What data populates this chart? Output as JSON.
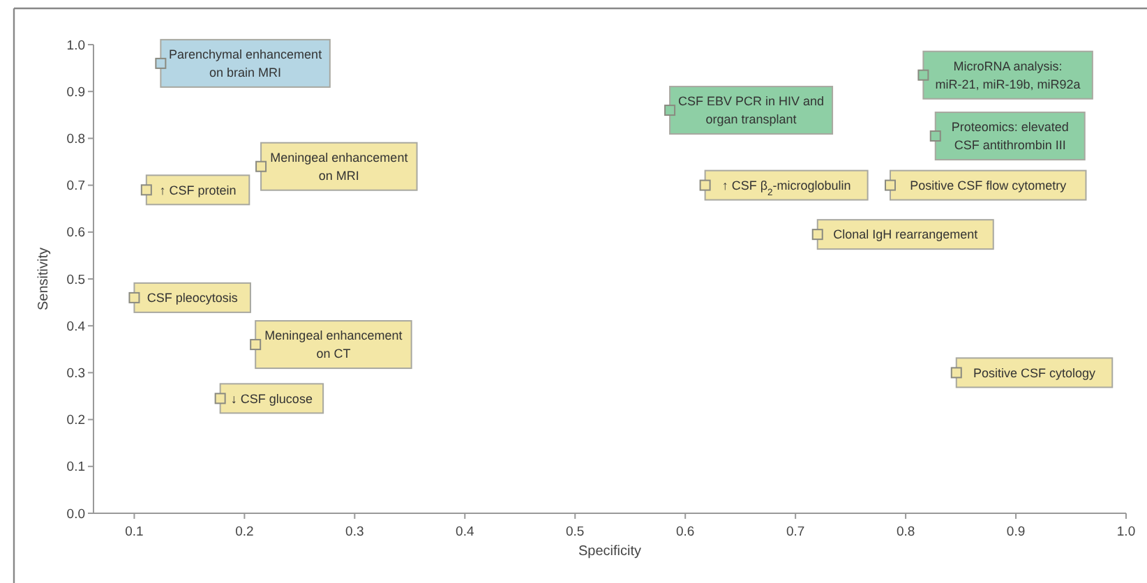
{
  "chart_data": {
    "type": "scatter",
    "xlabel": "Specificity",
    "ylabel": "Sensitivity",
    "xlim": [
      0.063,
      1.0
    ],
    "xticks": [
      {
        "value": 0.1,
        "label": "0.1"
      },
      {
        "value": 0.2,
        "label": "0.2"
      },
      {
        "value": 0.3,
        "label": "0.3"
      },
      {
        "value": 0.4,
        "label": "0.4"
      },
      {
        "value": 0.5,
        "label": "0.5"
      },
      {
        "value": 0.6,
        "label": "0.6"
      },
      {
        "value": 0.7,
        "label": "0.7"
      },
      {
        "value": 0.8,
        "label": "0.8"
      },
      {
        "value": 0.9,
        "label": "0.9"
      },
      {
        "value": 1.0,
        "label": "1.0"
      }
    ],
    "ylim": [
      0,
      1.0
    ],
    "yticks": [
      {
        "value": 0,
        "label": "0.0"
      },
      {
        "value": 0.1,
        "label": "0.1"
      },
      {
        "value": 0.2,
        "label": "0.2"
      },
      {
        "value": 0.3,
        "label": "0.3"
      },
      {
        "value": 0.4,
        "label": "0.4"
      },
      {
        "value": 0.5,
        "label": "0.5"
      },
      {
        "value": 0.6,
        "label": "0.6"
      },
      {
        "value": 0.7,
        "label": "0.7"
      },
      {
        "value": 0.8,
        "label": "0.8"
      },
      {
        "value": 0.9,
        "label": "0.9"
      },
      {
        "value": 1.0,
        "label": "1.0"
      }
    ],
    "grid": false,
    "marker": "square",
    "series": [
      {
        "color": "#b5d6e4",
        "x": [
          0.124
        ],
        "values": [
          0.96
        ]
      },
      {
        "color": "#f3e7a6",
        "x": [
          0.111,
          0.215,
          0.1,
          0.21,
          0.178,
          0.618,
          0.786,
          0.72,
          0.846
        ],
        "values": [
          0.69,
          0.74,
          0.46,
          0.36,
          0.245,
          0.7,
          0.7,
          0.595,
          0.3
        ]
      },
      {
        "color": "#8ecfa5",
        "x": [
          0.586,
          0.816,
          0.827
        ],
        "values": [
          0.86,
          0.935,
          0.805
        ]
      }
    ],
    "annotations": [
      {
        "text": "Parenchymal enhancement\non brain MRI",
        "x": 0.124,
        "y": 0.96
      },
      {
        "text": "↑ CSF protein",
        "x": 0.111,
        "y": 0.69
      },
      {
        "text": "Meningeal enhancement\non MRI",
        "x": 0.215,
        "y": 0.74
      },
      {
        "text": "CSF pleocytosis",
        "x": 0.1,
        "y": 0.46
      },
      {
        "text": "Meningeal enhancement\non CT",
        "x": 0.21,
        "y": 0.36
      },
      {
        "text": "↓ CSF glucose",
        "x": 0.178,
        "y": 0.245
      },
      {
        "text": "↑ CSF β$_{2}$-microglobulin",
        "x": 0.618,
        "y": 0.7
      },
      {
        "text": "Positive CSF flow cytometry",
        "x": 0.786,
        "y": 0.7
      },
      {
        "text": "Clonal IgH rearrangement",
        "x": 0.72,
        "y": 0.595
      },
      {
        "text": "Positive CSF cytology",
        "x": 0.846,
        "y": 0.3
      },
      {
        "text": "CSF EBV PCR in HIV and\norgan transplant",
        "x": 0.586,
        "y": 0.86
      },
      {
        "text": "MicroRNA analysis:\nmiR-21, miR-19b, miR92a",
        "x": 0.816,
        "y": 0.935
      },
      {
        "text": "Proteomics: elevated\nCSF antithrombin III",
        "x": 0.827,
        "y": 0.805
      }
    ]
  }
}
